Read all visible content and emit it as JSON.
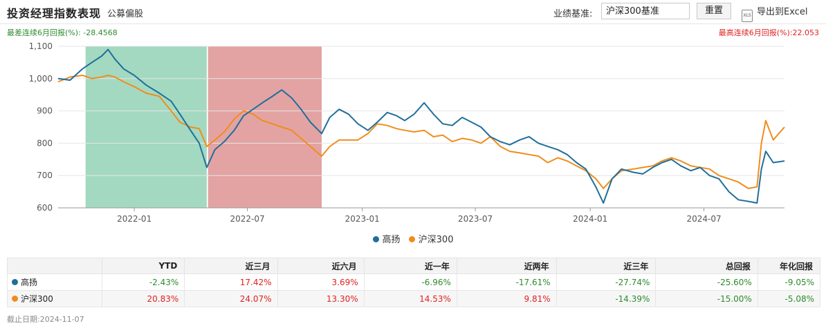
{
  "header": {
    "title": "投资经理指数表现",
    "subtitle": "公募偏股",
    "bench_label": "业绩基准:",
    "bench_value": "沪深300基准",
    "reset_label": "重置",
    "export_label": "导出到Excel",
    "export_icon": "xls-file-icon"
  },
  "stats": {
    "worst_label": "最差连续6月回报(%):",
    "worst_value": "-28.4568",
    "best_label": "最高连续6月回报(%):",
    "best_value": "22.053"
  },
  "colors": {
    "manager": "#1f6f9a",
    "benchmark": "#f08c1c",
    "worst_band": "#a3d9c1",
    "best_band": "#e3a3a3",
    "up": "#e02020",
    "down": "#2e8b2e"
  },
  "chart_data": {
    "type": "line",
    "x_ticks": [
      "2022-01",
      "2022-07",
      "2023-01",
      "2023-07",
      "2024-01",
      "2024-07"
    ],
    "y_ticks": [
      "600",
      "700",
      "800",
      "900",
      "1,000",
      "1,100"
    ],
    "ylim": [
      600,
      1100
    ],
    "x_range": [
      "2021-09-01",
      "2024-11-07"
    ],
    "grid": true,
    "legend_position": "bottom",
    "bands": [
      {
        "kind": "worst",
        "from": "2021-10-15",
        "to": "2022-04-27"
      },
      {
        "kind": "best",
        "from": "2022-04-29",
        "to": "2022-10-28"
      }
    ],
    "series": [
      {
        "name": "高扬",
        "color": "#1f6f9a",
        "points": [
          [
            "2021-09-01",
            1000
          ],
          [
            "2021-09-20",
            995
          ],
          [
            "2021-10-10",
            1030
          ],
          [
            "2021-10-25",
            1050
          ],
          [
            "2021-11-10",
            1070
          ],
          [
            "2021-11-20",
            1090
          ],
          [
            "2021-12-01",
            1060
          ],
          [
            "2021-12-15",
            1030
          ],
          [
            "2022-01-01",
            1010
          ],
          [
            "2022-01-20",
            980
          ],
          [
            "2022-02-10",
            955
          ],
          [
            "2022-03-01",
            930
          ],
          [
            "2022-03-15",
            890
          ],
          [
            "2022-04-01",
            840
          ],
          [
            "2022-04-15",
            800
          ],
          [
            "2022-04-27",
            725
          ],
          [
            "2022-05-10",
            780
          ],
          [
            "2022-05-25",
            805
          ],
          [
            "2022-06-10",
            840
          ],
          [
            "2022-06-25",
            885
          ],
          [
            "2022-07-10",
            905
          ],
          [
            "2022-07-25",
            925
          ],
          [
            "2022-08-10",
            945
          ],
          [
            "2022-08-25",
            965
          ],
          [
            "2022-09-10",
            940
          ],
          [
            "2022-09-25",
            905
          ],
          [
            "2022-10-10",
            865
          ],
          [
            "2022-10-28",
            830
          ],
          [
            "2022-11-10",
            880
          ],
          [
            "2022-11-25",
            905
          ],
          [
            "2022-12-10",
            890
          ],
          [
            "2022-12-25",
            860
          ],
          [
            "2023-01-10",
            840
          ],
          [
            "2023-01-25",
            865
          ],
          [
            "2023-02-10",
            895
          ],
          [
            "2023-02-25",
            885
          ],
          [
            "2023-03-10",
            870
          ],
          [
            "2023-03-25",
            890
          ],
          [
            "2023-04-10",
            925
          ],
          [
            "2023-04-25",
            890
          ],
          [
            "2023-05-10",
            860
          ],
          [
            "2023-05-25",
            855
          ],
          [
            "2023-06-10",
            880
          ],
          [
            "2023-06-25",
            865
          ],
          [
            "2023-07-10",
            850
          ],
          [
            "2023-07-25",
            820
          ],
          [
            "2023-08-10",
            805
          ],
          [
            "2023-08-25",
            795
          ],
          [
            "2023-09-10",
            810
          ],
          [
            "2023-09-25",
            820
          ],
          [
            "2023-10-10",
            800
          ],
          [
            "2023-10-25",
            790
          ],
          [
            "2023-11-10",
            780
          ],
          [
            "2023-11-25",
            765
          ],
          [
            "2023-12-10",
            740
          ],
          [
            "2023-12-25",
            720
          ],
          [
            "2024-01-10",
            665
          ],
          [
            "2024-01-22",
            615
          ],
          [
            "2024-02-05",
            690
          ],
          [
            "2024-02-20",
            720
          ],
          [
            "2024-03-10",
            710
          ],
          [
            "2024-03-25",
            705
          ],
          [
            "2024-04-10",
            725
          ],
          [
            "2024-04-25",
            740
          ],
          [
            "2024-05-10",
            750
          ],
          [
            "2024-05-25",
            730
          ],
          [
            "2024-06-10",
            715
          ],
          [
            "2024-06-25",
            725
          ],
          [
            "2024-07-10",
            700
          ],
          [
            "2024-07-25",
            690
          ],
          [
            "2024-08-10",
            650
          ],
          [
            "2024-08-25",
            625
          ],
          [
            "2024-09-10",
            620
          ],
          [
            "2024-09-24",
            615
          ],
          [
            "2024-10-01",
            720
          ],
          [
            "2024-10-08",
            775
          ],
          [
            "2024-10-20",
            740
          ],
          [
            "2024-11-07",
            745
          ]
        ]
      },
      {
        "name": "沪深300",
        "color": "#f08c1c",
        "points": [
          [
            "2021-09-01",
            990
          ],
          [
            "2021-09-20",
            1005
          ],
          [
            "2021-10-10",
            1010
          ],
          [
            "2021-10-25",
            1000
          ],
          [
            "2021-11-10",
            1005
          ],
          [
            "2021-11-20",
            1010
          ],
          [
            "2021-12-01",
            1005
          ],
          [
            "2021-12-15",
            990
          ],
          [
            "2022-01-01",
            975
          ],
          [
            "2022-01-20",
            955
          ],
          [
            "2022-02-10",
            945
          ],
          [
            "2022-03-01",
            900
          ],
          [
            "2022-03-15",
            865
          ],
          [
            "2022-04-01",
            850
          ],
          [
            "2022-04-15",
            845
          ],
          [
            "2022-04-27",
            790
          ],
          [
            "2022-05-10",
            810
          ],
          [
            "2022-05-25",
            835
          ],
          [
            "2022-06-10",
            875
          ],
          [
            "2022-06-25",
            900
          ],
          [
            "2022-07-10",
            890
          ],
          [
            "2022-07-25",
            870
          ],
          [
            "2022-08-10",
            860
          ],
          [
            "2022-08-25",
            850
          ],
          [
            "2022-09-10",
            840
          ],
          [
            "2022-09-25",
            815
          ],
          [
            "2022-10-10",
            790
          ],
          [
            "2022-10-28",
            760
          ],
          [
            "2022-11-10",
            790
          ],
          [
            "2022-11-25",
            810
          ],
          [
            "2022-12-10",
            810
          ],
          [
            "2022-12-25",
            810
          ],
          [
            "2023-01-10",
            830
          ],
          [
            "2023-01-25",
            860
          ],
          [
            "2023-02-10",
            855
          ],
          [
            "2023-02-25",
            845
          ],
          [
            "2023-03-10",
            840
          ],
          [
            "2023-03-25",
            835
          ],
          [
            "2023-04-10",
            840
          ],
          [
            "2023-04-25",
            820
          ],
          [
            "2023-05-10",
            825
          ],
          [
            "2023-05-25",
            805
          ],
          [
            "2023-06-10",
            815
          ],
          [
            "2023-06-25",
            810
          ],
          [
            "2023-07-10",
            800
          ],
          [
            "2023-07-25",
            820
          ],
          [
            "2023-08-10",
            790
          ],
          [
            "2023-08-25",
            775
          ],
          [
            "2023-09-10",
            770
          ],
          [
            "2023-09-25",
            765
          ],
          [
            "2023-10-10",
            760
          ],
          [
            "2023-10-25",
            740
          ],
          [
            "2023-11-10",
            755
          ],
          [
            "2023-11-25",
            745
          ],
          [
            "2023-12-10",
            730
          ],
          [
            "2023-12-25",
            715
          ],
          [
            "2024-01-10",
            690
          ],
          [
            "2024-01-22",
            660
          ],
          [
            "2024-02-05",
            690
          ],
          [
            "2024-02-20",
            715
          ],
          [
            "2024-03-10",
            720
          ],
          [
            "2024-03-25",
            725
          ],
          [
            "2024-04-10",
            730
          ],
          [
            "2024-04-25",
            745
          ],
          [
            "2024-05-10",
            755
          ],
          [
            "2024-05-25",
            745
          ],
          [
            "2024-06-10",
            730
          ],
          [
            "2024-06-25",
            725
          ],
          [
            "2024-07-10",
            720
          ],
          [
            "2024-07-25",
            700
          ],
          [
            "2024-08-10",
            690
          ],
          [
            "2024-08-25",
            680
          ],
          [
            "2024-09-10",
            660
          ],
          [
            "2024-09-24",
            665
          ],
          [
            "2024-10-01",
            800
          ],
          [
            "2024-10-08",
            870
          ],
          [
            "2024-10-20",
            810
          ],
          [
            "2024-11-07",
            850
          ]
        ]
      }
    ]
  },
  "table": {
    "headers": [
      "",
      "YTD",
      "近三月",
      "近六月",
      "近一年",
      "近两年",
      "近三年",
      "总回报",
      "年化回报"
    ],
    "rows": [
      {
        "name": "高扬",
        "color": "#1f6f9a",
        "values": [
          "-2.43%",
          "17.42%",
          "3.69%",
          "-6.96%",
          "-17.61%",
          "-27.74%",
          "-25.60%",
          "-9.05%"
        ]
      },
      {
        "name": "沪深300",
        "color": "#f08c1c",
        "values": [
          "20.83%",
          "24.07%",
          "13.30%",
          "14.53%",
          "9.81%",
          "-14.39%",
          "-15.00%",
          "-5.08%"
        ]
      }
    ]
  },
  "footer": {
    "date_label": "截止日期:",
    "date_value": "2024-11-07"
  }
}
